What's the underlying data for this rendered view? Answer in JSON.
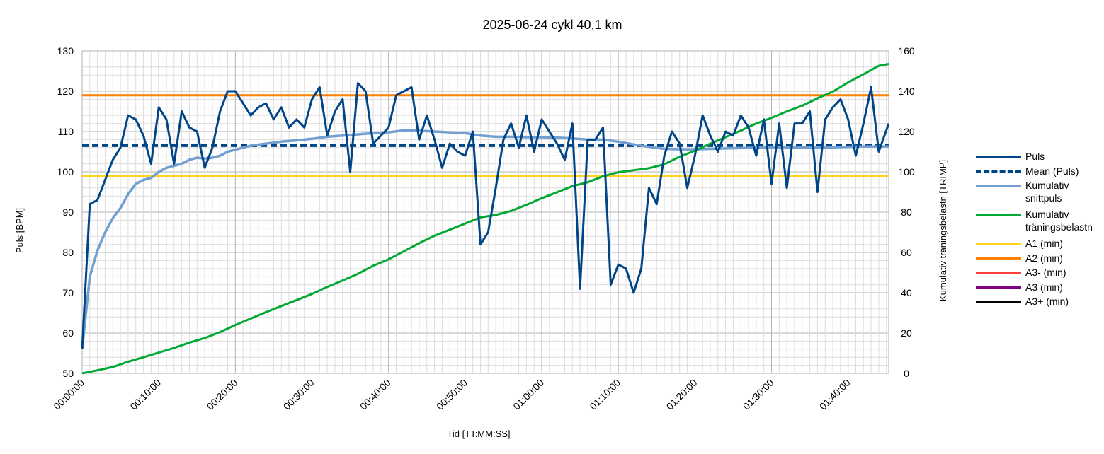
{
  "chart_data": {
    "type": "line",
    "title": "2025-06-24 cykl 40,1 km",
    "xlabel": "Tid [TT:MM:SS]",
    "ylabel": "Puls [BPM]",
    "y2label": "Kumulativ träningsbelastn [TRIMP]",
    "xlim": [
      0,
      105.3
    ],
    "ylim": [
      50,
      130
    ],
    "y2lim": [
      0,
      160
    ],
    "x_tick_labels": [
      "00:00:00",
      "00:10:00",
      "00:20:00",
      "00:30:00",
      "00:40:00",
      "00:50:00",
      "01:00:00",
      "01:10:00",
      "01:20:00",
      "01:30:00",
      "01:40:00"
    ],
    "y_tick_labels": [
      "50",
      "60",
      "70",
      "80",
      "90",
      "100",
      "110",
      "120",
      "130"
    ],
    "y2_tick_labels": [
      "0",
      "20",
      "40",
      "60",
      "80",
      "100",
      "120",
      "140",
      "160"
    ],
    "grid": true,
    "legend_position": "right",
    "series": [
      {
        "name": "Puls",
        "color": "#004586",
        "style": "solid",
        "axis": "left",
        "x": [
          0,
          1,
          2,
          3,
          4,
          5,
          6,
          7,
          8,
          9,
          10,
          11,
          12,
          13,
          14,
          15,
          16,
          17,
          18,
          19,
          20,
          21,
          22,
          23,
          24,
          25,
          26,
          27,
          28,
          29,
          30,
          31,
          32,
          33,
          34,
          35,
          36,
          37,
          38,
          39,
          40,
          41,
          42,
          43,
          44,
          45,
          46,
          47,
          48,
          49,
          50,
          51,
          52,
          53,
          54,
          55,
          56,
          57,
          58,
          59,
          60,
          61,
          62,
          63,
          64,
          65,
          66,
          67,
          68,
          69,
          70,
          71,
          72,
          73,
          74,
          75,
          76,
          77,
          78,
          79,
          80,
          81,
          82,
          83,
          84,
          85,
          86,
          87,
          88,
          89,
          90,
          91,
          92,
          93,
          94,
          95,
          96,
          97,
          98,
          99,
          100,
          101,
          102,
          103,
          104,
          105.3
        ],
        "y": [
          56,
          92,
          93,
          98,
          103,
          106,
          114,
          113,
          109,
          102,
          116,
          113,
          102,
          115,
          111,
          110,
          101,
          106,
          115,
          120,
          120,
          117,
          114,
          116,
          117,
          113,
          116,
          111,
          113,
          111,
          118,
          121,
          109,
          115,
          118,
          100,
          122,
          120,
          107,
          109,
          111,
          119,
          120,
          121,
          108,
          114,
          108,
          101,
          107,
          105,
          104,
          110,
          82,
          85,
          96,
          108,
          112,
          106,
          114,
          105,
          113,
          110,
          107,
          103,
          112,
          71,
          108,
          108,
          111,
          72,
          77,
          76,
          70,
          76,
          96,
          92,
          104,
          110,
          107,
          96,
          104,
          114,
          109,
          105,
          110,
          109,
          114,
          111,
          104,
          113,
          97,
          112,
          96,
          112,
          112,
          115,
          95,
          113,
          116,
          118,
          113,
          104,
          112,
          121,
          105,
          112
        ]
      },
      {
        "name": "Mean (Puls)",
        "color": "#004586",
        "style": "dashed",
        "axis": "left",
        "x": [
          0,
          105.3
        ],
        "y": [
          106.5,
          106.5
        ]
      },
      {
        "name": "Kumulativ snittpuls",
        "color": "#729fcf",
        "style": "solid",
        "axis": "left",
        "x": [
          0,
          1,
          2,
          3,
          4,
          5,
          6,
          7,
          8,
          9,
          10,
          11,
          12,
          13,
          14,
          15,
          16,
          17,
          18,
          19,
          20,
          22,
          24,
          26,
          28,
          30,
          32,
          34,
          36,
          38,
          40,
          42,
          44,
          46,
          48,
          50,
          52,
          54,
          56,
          58,
          60,
          62,
          64,
          66,
          68,
          70,
          72,
          74,
          76,
          78,
          80,
          82,
          84,
          86,
          88,
          90,
          92,
          94,
          96,
          98,
          100,
          102,
          105.3
        ],
        "y": [
          56,
          74,
          80.5,
          85,
          88.5,
          91,
          94.5,
          97,
          98,
          98.5,
          100,
          101,
          101.5,
          102,
          103,
          103.5,
          103.3,
          103.5,
          104,
          105,
          105.5,
          106.5,
          107,
          107.5,
          107.8,
          108.2,
          108.7,
          109,
          109.3,
          109.6,
          109.8,
          110.3,
          110.2,
          110,
          109.8,
          109.6,
          109,
          108.7,
          108.7,
          108.6,
          108.6,
          108.5,
          108.3,
          108,
          108,
          107.5,
          106.8,
          106.2,
          105.7,
          105.6,
          105.6,
          105.7,
          105.8,
          105.9,
          106,
          106,
          106,
          106,
          106,
          106.1,
          106.2,
          106.3,
          106.3
        ]
      },
      {
        "name": "Kumulativ träningsbelastn",
        "color": "#00a933",
        "style": "solid",
        "axis": "right",
        "x": [
          0,
          2,
          4,
          6,
          8,
          10,
          12,
          14,
          16,
          18,
          20,
          22,
          24,
          26,
          28,
          30,
          32,
          34,
          36,
          38,
          40,
          42,
          44,
          46,
          48,
          50,
          52,
          54,
          56,
          58,
          60,
          62,
          64,
          66,
          68,
          70,
          72,
          74,
          76,
          78,
          80,
          82,
          84,
          86,
          88,
          90,
          92,
          94,
          96,
          98,
          100,
          102,
          104,
          105.3
        ],
        "y": [
          0,
          1.5,
          3.2,
          5.8,
          8,
          10.3,
          12.6,
          15.3,
          17.5,
          20.5,
          24,
          27.2,
          30.4,
          33.4,
          36.4,
          39.4,
          42.9,
          46.1,
          49.4,
          53.4,
          56.6,
          60.6,
          64.6,
          68.3,
          71.3,
          74.3,
          77.4,
          78.6,
          80.6,
          83.6,
          86.9,
          89.9,
          92.9,
          94.8,
          97.8,
          99.8,
          100.8,
          101.8,
          103.8,
          107.5,
          110.5,
          114,
          117.2,
          120.5,
          124,
          126.8,
          130,
          132.8,
          136.5,
          139.8,
          144.4,
          148.4,
          152.6,
          153.5
        ]
      },
      {
        "name": "A1 (min)",
        "color": "#ffd320",
        "style": "solid",
        "axis": "left",
        "x": [
          0,
          105.3
        ],
        "y": [
          99,
          99
        ]
      },
      {
        "name": "A2 (min)",
        "color": "#ff8000",
        "style": "solid",
        "axis": "left",
        "x": [
          0,
          105.3
        ],
        "y": [
          119,
          119
        ]
      },
      {
        "name": "A3- (min)",
        "color": "#ff4040",
        "style": "solid",
        "axis": "left",
        "x": [],
        "y": []
      },
      {
        "name": "A3 (min)",
        "color": "#800080",
        "style": "solid",
        "axis": "left",
        "x": [],
        "y": []
      },
      {
        "name": "A3+ (min)",
        "color": "#000000",
        "style": "solid",
        "axis": "left",
        "x": [],
        "y": []
      }
    ]
  }
}
